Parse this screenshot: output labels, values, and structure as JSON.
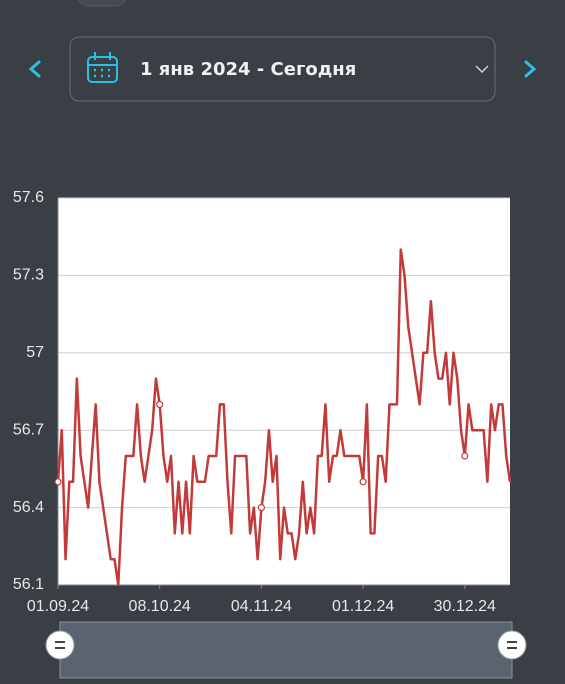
{
  "header": {
    "date_range": "1 янв 2024 - Сегодня"
  },
  "chart_data": {
    "type": "line",
    "color": "#c33a3a",
    "grid": true,
    "ylim": [
      56.1,
      57.6
    ],
    "yticks": [
      56.1,
      56.4,
      56.7,
      57,
      57.3,
      57.6
    ],
    "categories": [
      "01.09.24",
      null,
      null,
      null,
      null,
      null,
      null,
      null,
      null,
      null,
      null,
      null,
      null,
      null,
      null,
      null,
      null,
      null,
      null,
      null,
      null,
      null,
      null,
      null,
      null,
      null,
      null,
      "08.10.24",
      null,
      null,
      null,
      null,
      null,
      null,
      null,
      null,
      null,
      null,
      null,
      null,
      null,
      null,
      null,
      null,
      null,
      null,
      null,
      null,
      null,
      null,
      null,
      null,
      null,
      null,
      "04.11.24",
      null,
      null,
      null,
      null,
      null,
      null,
      null,
      null,
      null,
      null,
      null,
      null,
      null,
      null,
      null,
      null,
      null,
      null,
      null,
      null,
      null,
      null,
      null,
      null,
      null,
      null,
      "01.12.24",
      null,
      null,
      null,
      null,
      null,
      null,
      null,
      null,
      null,
      null,
      null,
      null,
      null,
      null,
      null,
      null,
      null,
      null,
      null,
      null,
      null,
      null,
      null,
      null,
      null,
      null,
      "30.12.24",
      null,
      null,
      null,
      null,
      null,
      null,
      null,
      null,
      null,
      null,
      null,
      null
    ],
    "values": [
      56.5,
      56.7,
      56.2,
      56.5,
      56.5,
      56.9,
      56.6,
      56.5,
      56.4,
      56.6,
      56.8,
      56.5,
      56.4,
      56.3,
      56.2,
      56.2,
      56.1,
      56.4,
      56.6,
      56.6,
      56.6,
      56.8,
      56.6,
      56.5,
      56.6,
      56.7,
      56.9,
      56.8,
      56.6,
      56.5,
      56.6,
      56.3,
      56.5,
      56.3,
      56.5,
      56.3,
      56.6,
      56.5,
      56.5,
      56.5,
      56.6,
      56.6,
      56.6,
      56.8,
      56.8,
      56.5,
      56.3,
      56.6,
      56.6,
      56.6,
      56.6,
      56.3,
      56.4,
      56.2,
      56.4,
      56.5,
      56.7,
      56.5,
      56.6,
      56.2,
      56.4,
      56.3,
      56.3,
      56.2,
      56.3,
      56.5,
      56.3,
      56.4,
      56.3,
      56.6,
      56.6,
      56.8,
      56.5,
      56.6,
      56.6,
      56.7,
      56.6,
      56.6,
      56.6,
      56.6,
      56.6,
      56.5,
      56.8,
      56.3,
      56.3,
      56.6,
      56.6,
      56.5,
      56.8,
      56.8,
      56.8,
      57.4,
      57.3,
      57.1,
      57.0,
      56.9,
      56.8,
      57.0,
      57.0,
      57.2,
      57.0,
      56.9,
      56.9,
      57.0,
      56.8,
      57.0,
      56.9,
      56.7,
      56.6,
      56.8,
      56.7,
      56.7,
      56.7,
      56.7,
      56.5,
      56.8,
      56.7,
      56.8,
      56.8,
      56.6,
      56.5
    ]
  }
}
